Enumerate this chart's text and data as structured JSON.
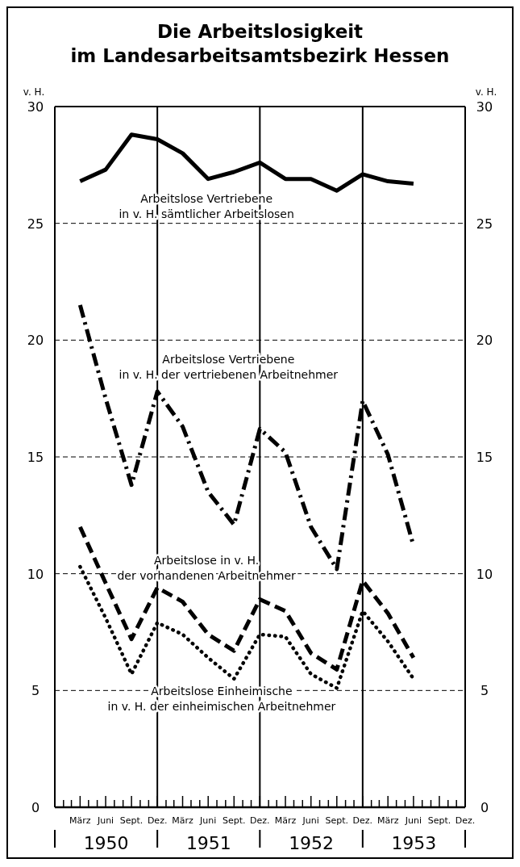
{
  "chart_data": {
    "type": "line",
    "title": "Die Arbeitslosigkeit\nim Landesarbeitsamtsbezirk Hessen",
    "ylabel": "v. H.",
    "y2label": "v. H.",
    "x": [
      "1950-03-31",
      "1950-06-30",
      "1950-09-30",
      "1950-12-31",
      "1951-03-31",
      "1951-06-30",
      "1951-09-30",
      "1951-12-31",
      "1952-03-31",
      "1952-06-30",
      "1952-09-30",
      "1952-12-31",
      "1953-03-31",
      "1953-06-30"
    ],
    "xlim": [
      "1949-12-31",
      "1953-12-31"
    ],
    "xticks": [
      {
        "value": "1950-01-31",
        "label": null
      },
      {
        "value": "1950-02-28",
        "label": null
      },
      {
        "value": "1950-03-31",
        "label": "März"
      },
      {
        "value": "1950-04-30",
        "label": null
      },
      {
        "value": "1950-05-31",
        "label": null
      },
      {
        "value": "1950-06-30",
        "label": "Juni"
      },
      {
        "value": "1950-07-31",
        "label": null
      },
      {
        "value": "1950-08-31",
        "label": null
      },
      {
        "value": "1950-09-30",
        "label": "Sept."
      },
      {
        "value": "1950-10-31",
        "label": null
      },
      {
        "value": "1950-11-30",
        "label": null
      },
      {
        "value": "1950-12-31",
        "label": "Dez."
      },
      {
        "value": "1951-01-31",
        "label": null
      },
      {
        "value": "1951-02-28",
        "label": null
      },
      {
        "value": "1951-03-31",
        "label": "März"
      },
      {
        "value": "1951-04-30",
        "label": null
      },
      {
        "value": "1951-05-31",
        "label": null
      },
      {
        "value": "1951-06-30",
        "label": "Juni"
      },
      {
        "value": "1951-07-31",
        "label": null
      },
      {
        "value": "1951-08-31",
        "label": null
      },
      {
        "value": "1951-09-30",
        "label": "Sept."
      },
      {
        "value": "1951-10-31",
        "label": null
      },
      {
        "value": "1951-11-30",
        "label": null
      },
      {
        "value": "1951-12-31",
        "label": "Dez."
      },
      {
        "value": "1952-01-31",
        "label": null
      },
      {
        "value": "1952-02-29",
        "label": null
      },
      {
        "value": "1952-03-31",
        "label": "März"
      },
      {
        "value": "1952-04-30",
        "label": null
      },
      {
        "value": "1952-05-31",
        "label": null
      },
      {
        "value": "1952-06-30",
        "label": "Juni"
      },
      {
        "value": "1952-07-31",
        "label": null
      },
      {
        "value": "1952-08-31",
        "label": null
      },
      {
        "value": "1952-09-30",
        "label": "Sept."
      },
      {
        "value": "1952-10-31",
        "label": null
      },
      {
        "value": "1952-11-30",
        "label": null
      },
      {
        "value": "1952-12-31",
        "label": "Dez."
      },
      {
        "value": "1953-01-31",
        "label": null
      },
      {
        "value": "1953-02-28",
        "label": null
      },
      {
        "value": "1953-03-31",
        "label": "März"
      },
      {
        "value": "1953-04-30",
        "label": null
      },
      {
        "value": "1953-05-31",
        "label": null
      },
      {
        "value": "1953-06-30",
        "label": "Juni"
      },
      {
        "value": "1953-07-31",
        "label": null
      },
      {
        "value": "1953-08-31",
        "label": null
      },
      {
        "value": "1953-09-30",
        "label": "Sept."
      },
      {
        "value": "1953-10-31",
        "label": null
      },
      {
        "value": "1953-11-30",
        "label": null
      },
      {
        "value": "1953-12-31",
        "label": "Dez."
      }
    ],
    "ylim": [
      0,
      30
    ],
    "yticks": [
      0,
      5,
      10,
      15,
      20,
      25,
      30
    ],
    "y2lim": [
      0,
      30
    ],
    "y2ticks": [
      0,
      5,
      10,
      15,
      20,
      25,
      30
    ],
    "grid": "y",
    "legend": false,
    "marker": "none",
    "ref_lines": [
      {
        "axis": "x",
        "value": "1950-12-31",
        "label": null,
        "color": "#000000",
        "line_style": "solid"
      },
      {
        "axis": "x",
        "value": "1951-12-31",
        "label": null,
        "color": "#000000",
        "line_style": "solid"
      },
      {
        "axis": "x",
        "value": "1952-12-31",
        "label": null,
        "color": "#000000",
        "line_style": "solid"
      }
    ],
    "annotations": [
      "1950",
      "1951",
      "1952",
      "1953"
    ],
    "series": [
      {
        "name": "Arbeitslose Vertriebene\nin v. H. sämtlicher Arbeitslosen",
        "color": "#000000",
        "line_style": "solid",
        "values": [
          26.8,
          27.3,
          28.8,
          28.6,
          28.0,
          26.9,
          27.2,
          27.6,
          26.9,
          26.9,
          26.4,
          27.1,
          26.8,
          26.7
        ]
      },
      {
        "name": "Arbeitslose Vertriebene\nin v. H. der vertriebenen Arbeitnehmer",
        "color": "#000000",
        "line_style": "dashdot",
        "values": [
          21.5,
          17.5,
          13.8,
          17.8,
          16.3,
          13.5,
          12.1,
          16.2,
          15.2,
          12.0,
          10.2,
          17.4,
          15.1,
          11.2
        ]
      },
      {
        "name": "Arbeitslose in v. H.\nder vorhandenen Arbeitnehmer",
        "color": "#000000",
        "line_style": "dashed",
        "values": [
          12.0,
          9.6,
          7.2,
          9.4,
          8.8,
          7.4,
          6.7,
          8.9,
          8.4,
          6.6,
          5.9,
          9.7,
          8.3,
          6.4
        ]
      },
      {
        "name": "Arbeitslose Einheimische\nin v. H. der einheimischen Arbeitnehmer",
        "color": "#000000",
        "line_style": "dotted",
        "values": [
          10.3,
          8.1,
          5.7,
          7.9,
          7.4,
          6.4,
          5.5,
          7.4,
          7.3,
          5.7,
          5.1,
          8.4,
          7.1,
          5.5
        ]
      }
    ]
  }
}
